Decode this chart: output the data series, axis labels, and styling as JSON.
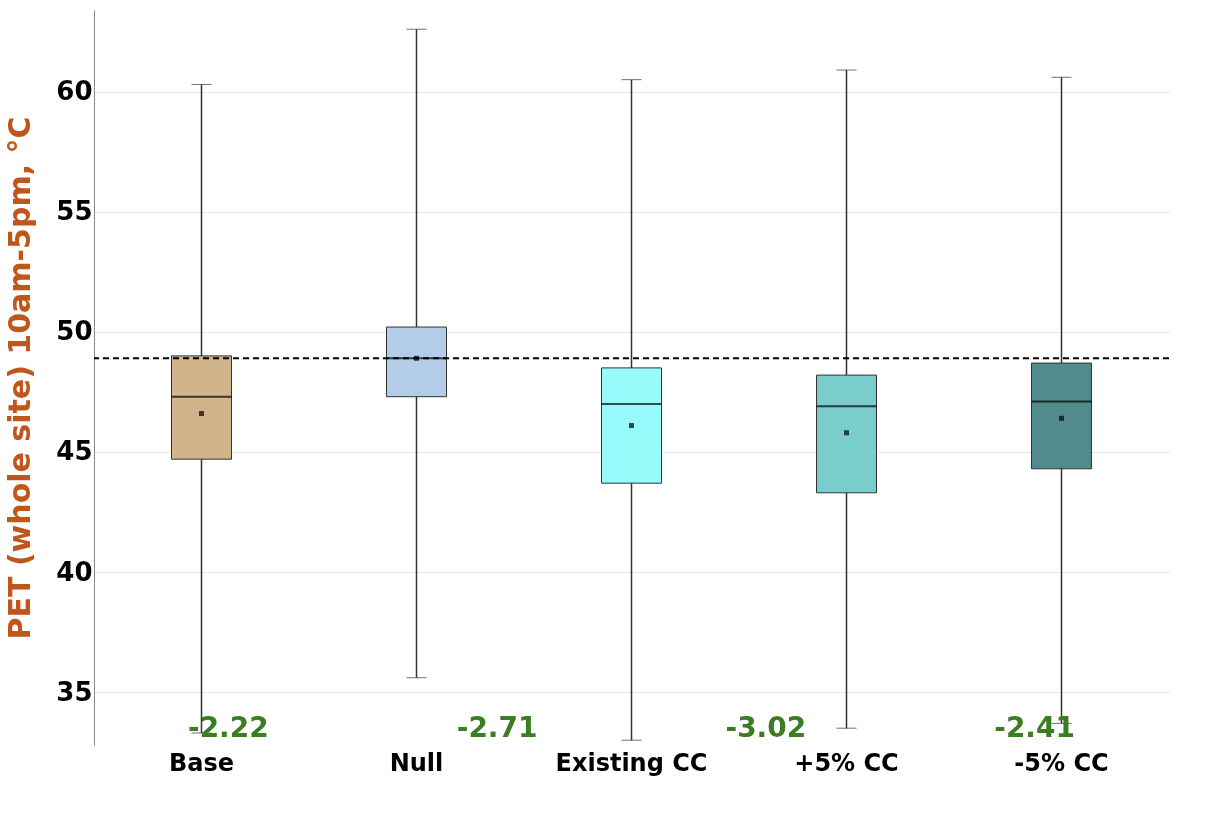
{
  "chart_data": {
    "type": "box",
    "ylabel": "PET  (whole site) 10am-5pm, °C",
    "categories": [
      "Base",
      "Null",
      "Existing CC",
      "+5% CC",
      "-5% CC"
    ],
    "colors": [
      "#d2b48c",
      "#b3cde8",
      "#98fbfb",
      "#79cdcd",
      "#528b8b"
    ],
    "boxes": [
      {
        "low": 33.3,
        "q1": 44.7,
        "median": 47.3,
        "q3": 49.0,
        "high": 60.3,
        "mean": 46.6
      },
      {
        "low": 35.6,
        "q1": 47.3,
        "median": 48.9,
        "q3": 50.2,
        "high": 62.6,
        "mean": 48.9
      },
      {
        "low": 33.0,
        "q1": 43.7,
        "median": 47.0,
        "q3": 48.5,
        "high": 60.5,
        "mean": 46.1
      },
      {
        "low": 33.5,
        "q1": 43.3,
        "median": 46.9,
        "q3": 48.2,
        "high": 60.9,
        "mean": 45.8
      },
      {
        "low": 33.7,
        "q1": 44.3,
        "median": 47.1,
        "q3": 48.7,
        "high": 60.6,
        "mean": 46.4
      }
    ],
    "ylim": [
      32.8,
      63.4
    ],
    "yticks": [
      35,
      40,
      45,
      50,
      55,
      60
    ],
    "grid": "y",
    "ref_lines": [
      {
        "axis": "y",
        "value": 48.9,
        "line_style": "dashed",
        "color": "#000000"
      }
    ],
    "annotations": [
      "-2.22",
      "-2.71",
      "-3.02",
      "-2.41"
    ]
  }
}
